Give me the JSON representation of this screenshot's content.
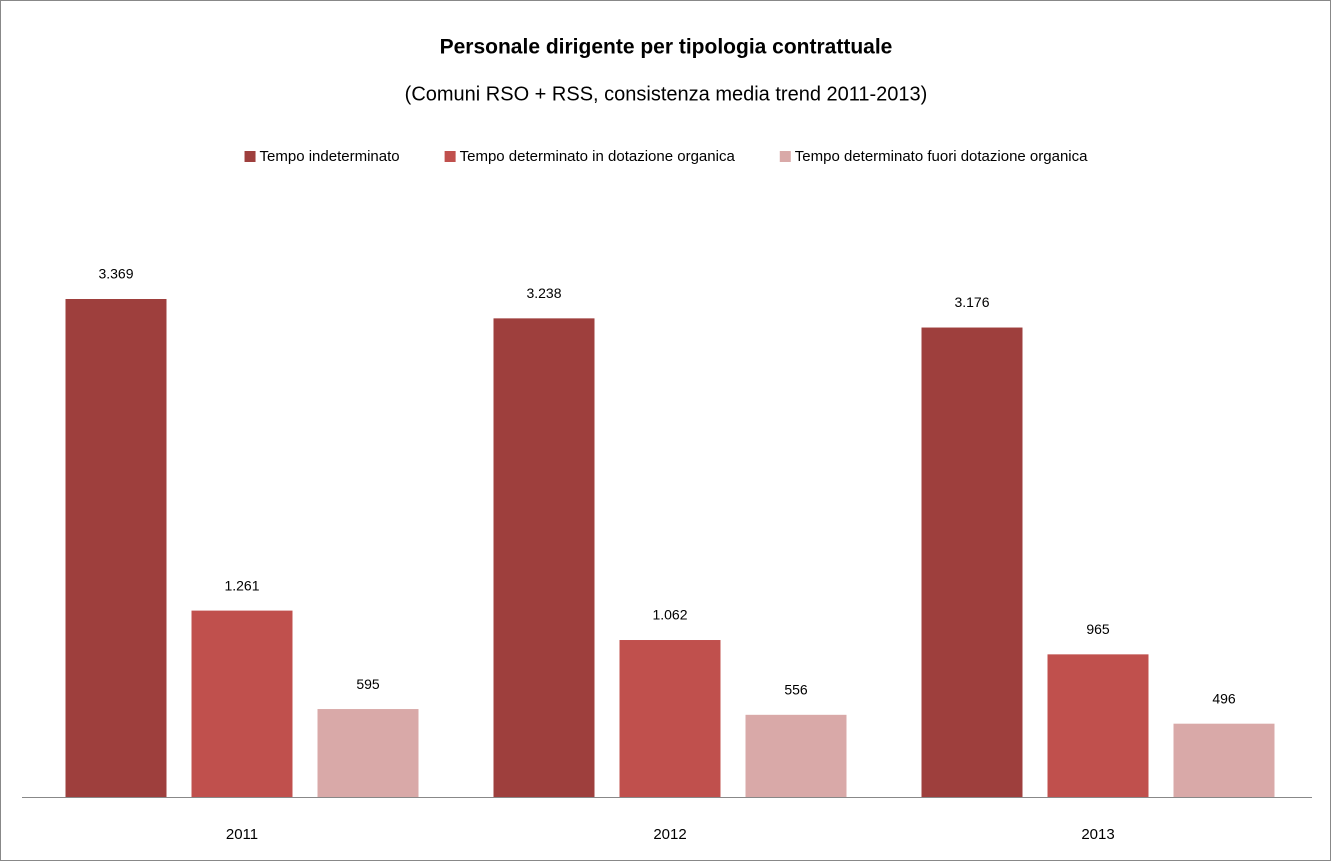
{
  "chart_data": {
    "type": "bar",
    "title": "Personale dirigente per tipologia contrattuale",
    "subtitle": "(Comuni RSO + RSS, consistenza media trend 2011-2013)",
    "categories": [
      "2011",
      "2012",
      "2013"
    ],
    "series": [
      {
        "name": "Tempo indeterminato",
        "color": "#9e3f3d",
        "values": [
          3369,
          3238,
          3176
        ],
        "value_labels": [
          "3.369",
          "3.238",
          "3.176"
        ]
      },
      {
        "name": "Tempo determinato in dotazione organica",
        "color": "#c0504d",
        "values": [
          1261,
          1062,
          965
        ],
        "value_labels": [
          "1.261",
          "1.062",
          "965"
        ]
      },
      {
        "name": "Tempo determinato fuori dotazione organica",
        "color": "#d9a9a8",
        "values": [
          595,
          556,
          496
        ],
        "value_labels": [
          "595",
          "556",
          "496"
        ]
      }
    ],
    "legend": "top"
  }
}
